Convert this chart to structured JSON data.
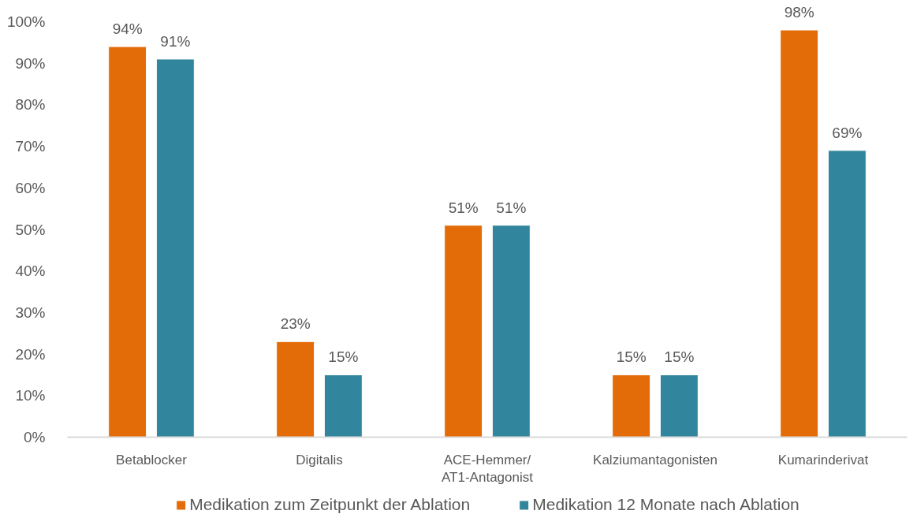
{
  "chart_data": {
    "type": "bar",
    "categories": [
      "Betablocker",
      "Digitalis",
      "ACE-Hemmer/AT1-Antagonist",
      "Kalziumantagonisten",
      "Kumarinderivat"
    ],
    "series": [
      {
        "name": "Medikation zum Zeitpunkt der Ablation",
        "color": "#e36c09",
        "values": [
          94,
          23,
          51,
          15,
          98
        ],
        "value_labels": [
          "94%",
          "23%",
          "51%",
          "15%",
          "98%"
        ]
      },
      {
        "name": "Medikation 12 Monate nach Ablation",
        "color": "#31859c",
        "values": [
          91,
          15,
          51,
          15,
          69
        ],
        "value_labels": [
          "91%",
          "15%",
          "51%",
          "15%",
          "69%"
        ]
      }
    ],
    "ylim": [
      0,
      100
    ],
    "yticks": [
      {
        "value": 0,
        "label": "0%"
      },
      {
        "value": 10,
        "label": "10%"
      },
      {
        "value": 20,
        "label": "20%"
      },
      {
        "value": 30,
        "label": "30%"
      },
      {
        "value": 40,
        "label": "40%"
      },
      {
        "value": 50,
        "label": "50%"
      },
      {
        "value": 60,
        "label": "60%"
      },
      {
        "value": 70,
        "label": "70%"
      },
      {
        "value": 80,
        "label": "80%"
      },
      {
        "value": 90,
        "label": "90%"
      },
      {
        "value": 100,
        "label": "100%"
      }
    ],
    "grid": false,
    "legend": "bottom"
  }
}
